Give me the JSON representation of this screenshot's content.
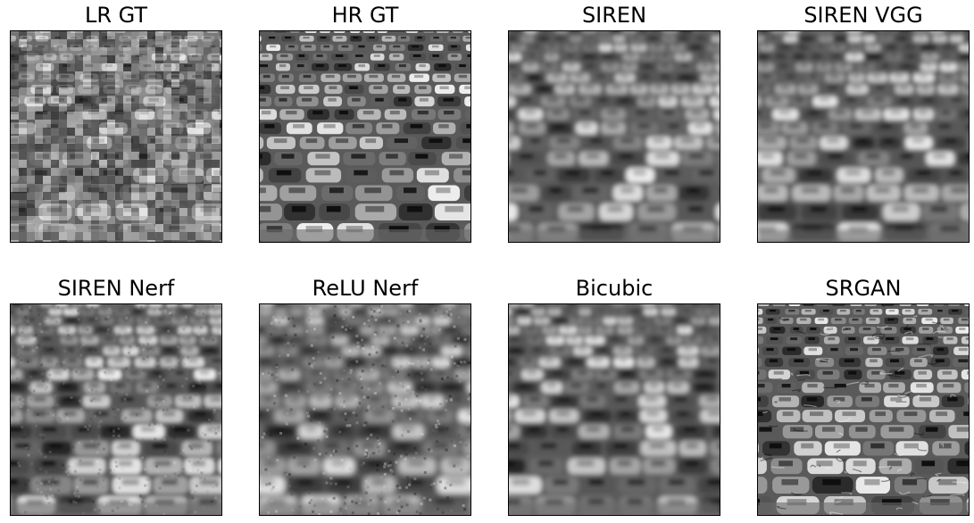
{
  "figure": {
    "panels": [
      {
        "title": "LR GT",
        "style": "pixelated"
      },
      {
        "title": "HR GT",
        "style": "sharp"
      },
      {
        "title": "SIREN",
        "style": "blurred"
      },
      {
        "title": "SIREN VGG",
        "style": "blurred"
      },
      {
        "title": "SIREN Nerf",
        "style": "noisy"
      },
      {
        "title": "ReLU Nerf",
        "style": "very-noisy"
      },
      {
        "title": "Bicubic",
        "style": "blurred"
      },
      {
        "title": "SRGAN",
        "style": "high-contrast"
      }
    ]
  }
}
